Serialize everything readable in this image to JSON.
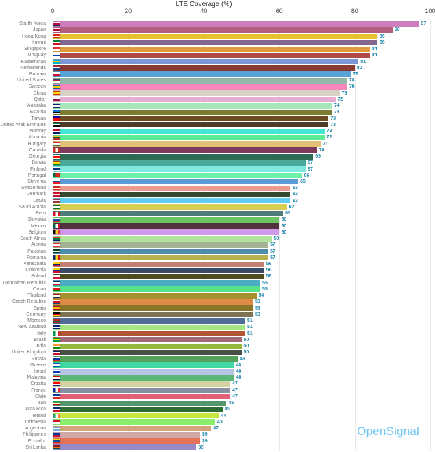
{
  "title": "LTE Coverage (%)",
  "watermark": "OpenSignal",
  "axis": {
    "ticks": [
      0,
      20,
      40,
      60,
      80,
      100
    ]
  },
  "colors": {
    "value_label": "#2187ab",
    "country_label": "#757575",
    "gridline": "#e9e9e9",
    "watermark": "#72c7f5",
    "background": "#ffffff"
  },
  "chart_data": {
    "type": "bar",
    "orientation": "horizontal",
    "title": "LTE Coverage (%)",
    "xlabel": "LTE Coverage (%)",
    "xlim": [
      0,
      100
    ],
    "grid": true,
    "value_labels": true,
    "countries": [
      {
        "name": "South Korea",
        "value": 97,
        "color": "#cd7ebc",
        "flag": [
          "#ffffff",
          "#c60c30",
          "#003478"
        ]
      },
      {
        "name": "Japan",
        "value": 90,
        "color": "#b25f7e",
        "flag": [
          "#ffffff",
          "#bc002d",
          "#ffffff"
        ]
      },
      {
        "name": "Hong Kong",
        "value": 86,
        "color": "#e5c330",
        "flag": [
          "#de2910",
          "#ffffff",
          "#de2910"
        ]
      },
      {
        "name": "Kuwait",
        "value": 86,
        "color": "#84678f",
        "flag": [
          "#007a3d",
          "#ffffff",
          "#ce1126"
        ]
      },
      {
        "name": "Singapore",
        "value": 84,
        "color": "#dd9b3a",
        "flag": [
          "#ed2939",
          "#ffffff"
        ]
      },
      {
        "name": "Uruguay",
        "value": 84,
        "color": "#b04a48",
        "flag": [
          "#ffffff",
          "#0038a8",
          "#ffffff"
        ]
      },
      {
        "name": "Kazakhstan",
        "value": 81,
        "color": "#7b97d8",
        "flag": [
          "#00afca",
          "#fec50c",
          "#00afca"
        ]
      },
      {
        "name": "Netherlands",
        "value": 80,
        "color": "#8a3a34",
        "flag": [
          "#ae1c28",
          "#ffffff",
          "#21468b"
        ]
      },
      {
        "name": "Bahrain",
        "value": 79,
        "color": "#57a3d8",
        "flag": [
          "#ffffff",
          "#ce1126"
        ]
      },
      {
        "name": "United States",
        "value": 78,
        "color": "#93b8ab",
        "flag": [
          "#3c3b6e",
          "#b22234",
          "#ffffff"
        ]
      },
      {
        "name": "Sweden",
        "value": 78,
        "color": "#f687bd",
        "flag": [
          "#006aa7",
          "#fecc00",
          "#006aa7"
        ]
      },
      {
        "name": "China",
        "value": 76,
        "color": "#d6d2c6",
        "flag": [
          "#de2910",
          "#ffde00",
          "#de2910"
        ]
      },
      {
        "name": "Qatar",
        "value": 75,
        "color": "#e7aed2",
        "flag": [
          "#ffffff",
          "#8d1b3d"
        ]
      },
      {
        "name": "Australia",
        "value": 74,
        "color": "#a8e5b8",
        "flag": [
          "#00247d",
          "#ffffff",
          "#00247d"
        ]
      },
      {
        "name": "Estonia",
        "value": 74,
        "color": "#7a7a30",
        "flag": [
          "#0072ce",
          "#000000",
          "#ffffff"
        ]
      },
      {
        "name": "Taiwan",
        "value": 73,
        "color": "#6d4b20",
        "flag": [
          "#000095",
          "#fe0000"
        ]
      },
      {
        "name": "United Arab Emirates",
        "value": 73,
        "color": "#4e3b28",
        "flag": [
          "#00732f",
          "#ffffff",
          "#000000"
        ]
      },
      {
        "name": "Norway",
        "value": 72,
        "color": "#45e6d2",
        "flag": [
          "#ba0c2f",
          "#ffffff",
          "#00205b"
        ]
      },
      {
        "name": "Lithuania",
        "value": 72,
        "color": "#5ced93",
        "flag": [
          "#fdb913",
          "#006a44",
          "#c1272d"
        ]
      },
      {
        "name": "Hungary",
        "value": 71,
        "color": "#e2c177",
        "flag": [
          "#ce2939",
          "#ffffff",
          "#477050"
        ]
      },
      {
        "name": "Canada",
        "value": 70,
        "color": "#7d3a5d",
        "flag": [
          "#d52b1e",
          "#ffffff",
          "#d52b1e"
        ],
        "flag_dir": "v"
      },
      {
        "name": "Georgia",
        "value": 69,
        "color": "#2e6b55",
        "flag": [
          "#ffffff",
          "#ff0000",
          "#ffffff"
        ]
      },
      {
        "name": "Bolivia",
        "value": 67,
        "color": "#49a89a",
        "flag": [
          "#d52b1e",
          "#f9e300",
          "#007934"
        ]
      },
      {
        "name": "Finland",
        "value": 67,
        "color": "#80e8de",
        "flag": [
          "#ffffff",
          "#003580",
          "#ffffff"
        ]
      },
      {
        "name": "Portugal",
        "value": 66,
        "color": "#6fefa9",
        "flag": [
          "#046a38",
          "#da291c",
          "#da291c"
        ],
        "flag_dir": "v"
      },
      {
        "name": "Slovenia",
        "value": 65,
        "color": "#5b9ad4",
        "flag": [
          "#ffffff",
          "#005da4",
          "#ed1c24"
        ]
      },
      {
        "name": "Switzerland",
        "value": 63,
        "color": "#ef9a90",
        "flag": [
          "#d52b1e",
          "#ffffff",
          "#d52b1e"
        ]
      },
      {
        "name": "Denmark",
        "value": 63,
        "color": "#35492e",
        "flag": [
          "#c8102e",
          "#ffffff",
          "#c8102e"
        ]
      },
      {
        "name": "Latvia",
        "value": 63,
        "color": "#62cdf0",
        "flag": [
          "#9e3039",
          "#ffffff",
          "#9e3039"
        ]
      },
      {
        "name": "Saudi Arabia",
        "value": 62,
        "color": "#d6cf52",
        "flag": [
          "#006c35",
          "#ffffff",
          "#006c35"
        ]
      },
      {
        "name": "Peru",
        "value": 61,
        "color": "#4e7d78",
        "flag": [
          "#d91023",
          "#ffffff",
          "#d91023"
        ],
        "flag_dir": "v"
      },
      {
        "name": "Slovakia",
        "value": 60,
        "color": "#6cc562",
        "flag": [
          "#ffffff",
          "#0b4ea2",
          "#ee1c25"
        ]
      },
      {
        "name": "Mexico",
        "value": 60,
        "color": "#533040",
        "flag": [
          "#006847",
          "#ffffff",
          "#ce1126"
        ],
        "flag_dir": "v"
      },
      {
        "name": "Belgium",
        "value": 60,
        "color": "#cf9be8",
        "flag": [
          "#000000",
          "#fdda24",
          "#ef3340"
        ],
        "flag_dir": "v"
      },
      {
        "name": "South Africa",
        "value": 58,
        "color": "#b2e39a",
        "flag": [
          "#de3831",
          "#007a4d",
          "#001489"
        ]
      },
      {
        "name": "Austria",
        "value": 57,
        "color": "#a3b292",
        "flag": [
          "#ed2939",
          "#ffffff",
          "#ed2939"
        ]
      },
      {
        "name": "Pakistan",
        "value": 57,
        "color": "#4b8dab",
        "flag": [
          "#01411c",
          "#ffffff",
          "#01411c"
        ]
      },
      {
        "name": "Romania",
        "value": 57,
        "color": "#b8b24e",
        "flag": [
          "#002b7f",
          "#fcd116",
          "#ce1126"
        ],
        "flag_dir": "v"
      },
      {
        "name": "Venezuela",
        "value": 56,
        "color": "#c47f75",
        "flag": [
          "#ffcc00",
          "#00247d",
          "#cf142b"
        ]
      },
      {
        "name": "Colombia",
        "value": 56,
        "color": "#3d4a63",
        "flag": [
          "#fcd116",
          "#003893",
          "#ce1126"
        ]
      },
      {
        "name": "Poland",
        "value": 56,
        "color": "#4e4d20",
        "flag": [
          "#ffffff",
          "#dc143c"
        ]
      },
      {
        "name": "Dominican Republic",
        "value": 55,
        "color": "#4cacc4",
        "flag": [
          "#002d62",
          "#ffffff",
          "#ce1126"
        ]
      },
      {
        "name": "Oman",
        "value": 55,
        "color": "#55e28b",
        "flag": [
          "#ffffff",
          "#db161b",
          "#008000"
        ]
      },
      {
        "name": "Thailand",
        "value": 54,
        "color": "#a5922e",
        "flag": [
          "#a51931",
          "#ffffff",
          "#2d2a4a"
        ]
      },
      {
        "name": "Czech Republic",
        "value": 53,
        "color": "#dd8b45",
        "flag": [
          "#ffffff",
          "#d7141a",
          "#11457e"
        ]
      },
      {
        "name": "Spain",
        "value": 53,
        "color": "#8a7428",
        "flag": [
          "#aa151b",
          "#f1bf00",
          "#aa151b"
        ]
      },
      {
        "name": "Germany",
        "value": 53,
        "color": "#7d7455",
        "flag": [
          "#000000",
          "#dd0000",
          "#ffce00"
        ]
      },
      {
        "name": "Morocco",
        "value": 51,
        "color": "#4e6e96",
        "flag": [
          "#c1272d",
          "#006233",
          "#c1272d"
        ]
      },
      {
        "name": "New Zealand",
        "value": 51,
        "color": "#a5e87f",
        "flag": [
          "#00247d",
          "#ffffff",
          "#00247d"
        ]
      },
      {
        "name": "Italy",
        "value": 51,
        "color": "#b05633",
        "flag": [
          "#009246",
          "#ffffff",
          "#ce2b37"
        ],
        "flag_dir": "v"
      },
      {
        "name": "Brazil",
        "value": 50,
        "color": "#a06a76",
        "flag": [
          "#009c3b",
          "#ffdf00",
          "#009c3b"
        ]
      },
      {
        "name": "India",
        "value": 50,
        "color": "#93b83d",
        "flag": [
          "#ff9933",
          "#ffffff",
          "#128807"
        ]
      },
      {
        "name": "United Kingdom",
        "value": 50,
        "color": "#474f47",
        "flag": [
          "#012169",
          "#ffffff",
          "#c8102e"
        ]
      },
      {
        "name": "Russia",
        "value": 49,
        "color": "#55a05a",
        "flag": [
          "#ffffff",
          "#0039a6",
          "#d52b1e"
        ]
      },
      {
        "name": "Greece",
        "value": 48,
        "color": "#3ed9a4",
        "flag": [
          "#0d5eaf",
          "#ffffff",
          "#0d5eaf"
        ]
      },
      {
        "name": "Israel",
        "value": 48,
        "color": "#b9c4e4",
        "flag": [
          "#ffffff",
          "#0038b8",
          "#ffffff"
        ]
      },
      {
        "name": "Malaysia",
        "value": 48,
        "color": "#5cb878",
        "flag": [
          "#cc0001",
          "#ffffff",
          "#010066"
        ]
      },
      {
        "name": "Croatia",
        "value": 47,
        "color": "#d3d2a2",
        "flag": [
          "#ff0000",
          "#ffffff",
          "#171796"
        ]
      },
      {
        "name": "France",
        "value": 47,
        "color": "#8890a2",
        "flag": [
          "#002395",
          "#ffffff",
          "#ed2939"
        ],
        "flag_dir": "v"
      },
      {
        "name": "Chile",
        "value": 47,
        "color": "#e06078",
        "flag": [
          "#0039a6",
          "#ffffff",
          "#d52b1e"
        ]
      },
      {
        "name": "Iran",
        "value": 46,
        "color": "#53966b",
        "flag": [
          "#239f40",
          "#ffffff",
          "#da0000"
        ]
      },
      {
        "name": "Costa Rica",
        "value": 45,
        "color": "#2f6b35",
        "flag": [
          "#002b7f",
          "#ffffff",
          "#ce1126"
        ]
      },
      {
        "name": "Ireland",
        "value": 44,
        "color": "#c6e83e",
        "flag": [
          "#169b62",
          "#ffffff",
          "#ff883e"
        ],
        "flag_dir": "v"
      },
      {
        "name": "Indonesia",
        "value": 43,
        "color": "#8aee6a",
        "flag": [
          "#ce1126",
          "#ffffff"
        ]
      },
      {
        "name": "Argentina",
        "value": 42,
        "color": "#d2a678",
        "flag": [
          "#74acdf",
          "#ffffff",
          "#74acdf"
        ]
      },
      {
        "name": "Philippines",
        "value": 39,
        "color": "#cfa8a8",
        "flag": [
          "#0038a8",
          "#ce1126"
        ]
      },
      {
        "name": "Ecuador",
        "value": 39,
        "color": "#e47258",
        "flag": [
          "#ffdd00",
          "#034ea2",
          "#ed1c24"
        ]
      },
      {
        "name": "Sri Lanka",
        "value": 38,
        "color": "#978ac8",
        "flag": [
          "#8d153a",
          "#eb7400",
          "#005641"
        ]
      }
    ]
  }
}
